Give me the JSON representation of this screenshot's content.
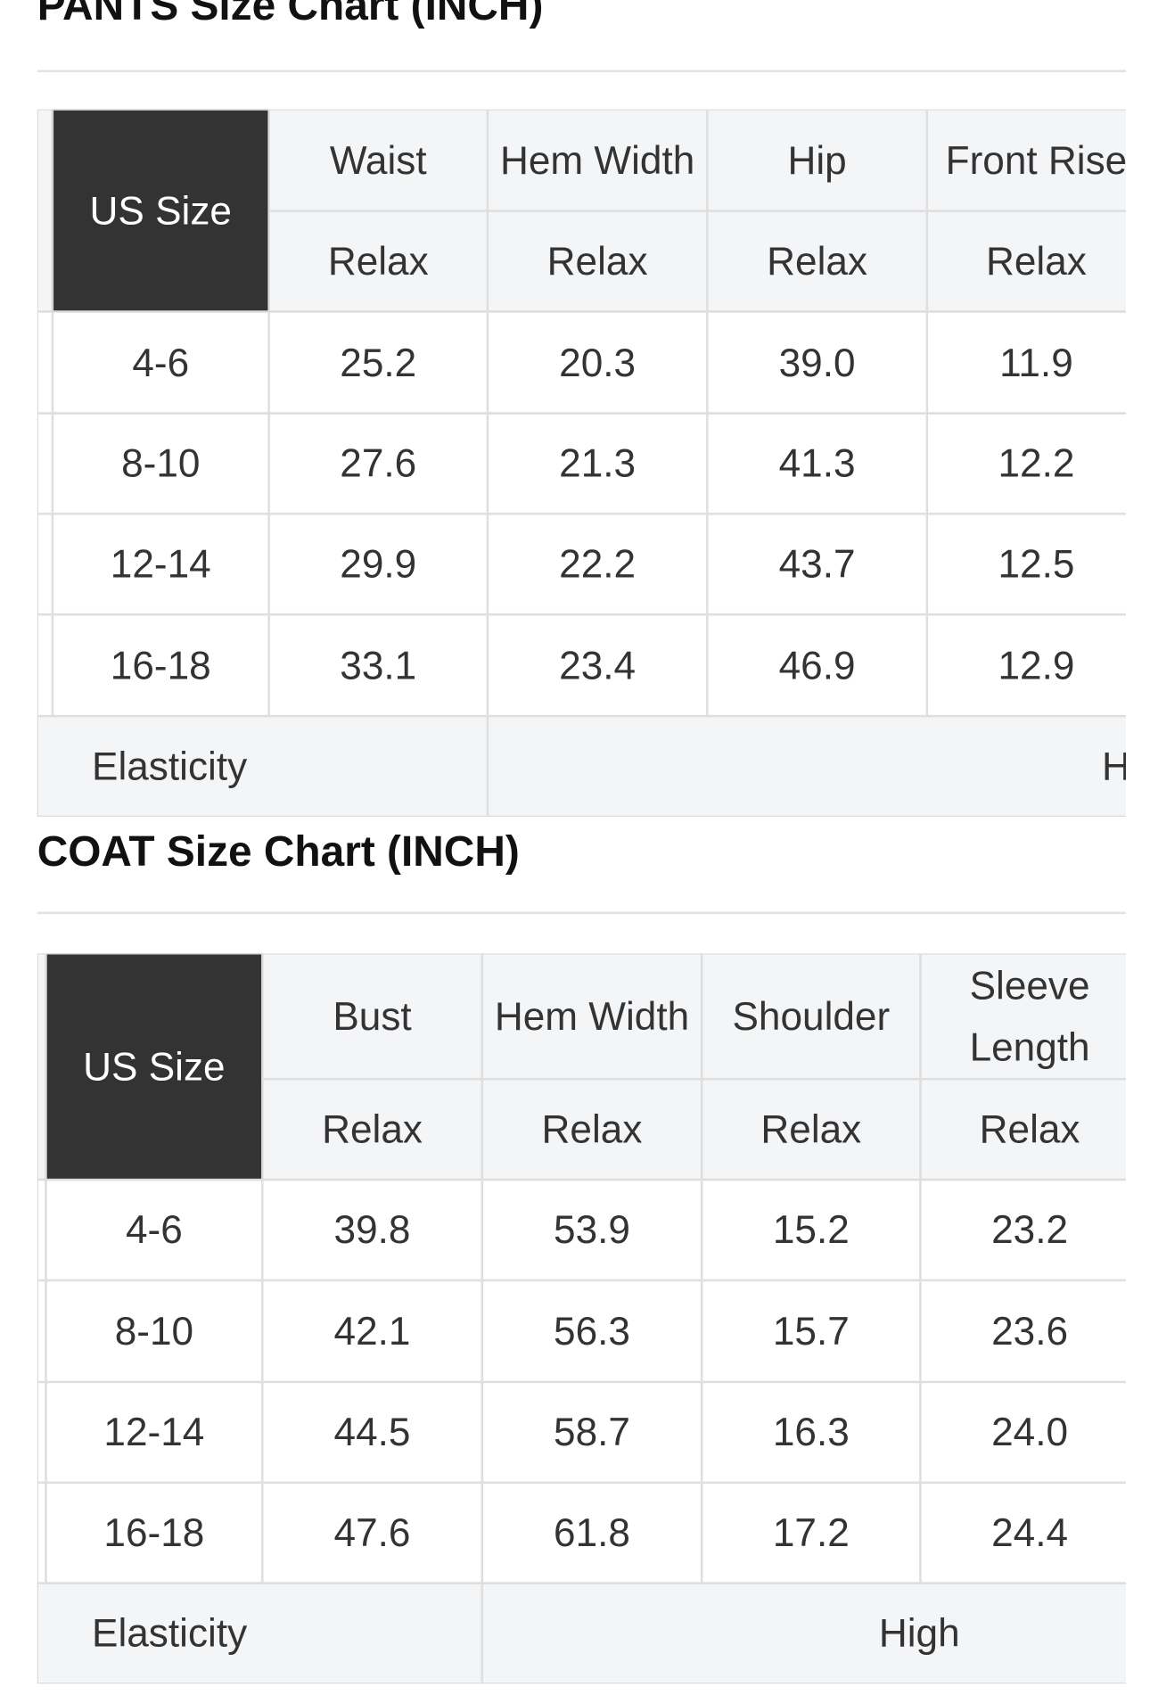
{
  "pants": {
    "title": "PANTS Size Chart (INCH)",
    "header": {
      "size_label": "US Size",
      "measurements": [
        "Waist",
        "Hem Width",
        "Hip",
        "Front Rise"
      ],
      "fit": [
        "Relax",
        "Relax",
        "Relax",
        "Relax"
      ]
    },
    "rows": [
      {
        "size": "4-6",
        "values": [
          "25.2",
          "20.3",
          "39.0",
          "11.9"
        ]
      },
      {
        "size": "8-10",
        "values": [
          "27.6",
          "21.3",
          "41.3",
          "12.2"
        ]
      },
      {
        "size": "12-14",
        "values": [
          "29.9",
          "22.2",
          "43.7",
          "12.5"
        ]
      },
      {
        "size": "16-18",
        "values": [
          "33.1",
          "23.4",
          "46.9",
          "12.9"
        ]
      }
    ],
    "elasticity": {
      "label": "Elasticity",
      "value": "High"
    }
  },
  "coat": {
    "title": "COAT Size Chart (INCH)",
    "header": {
      "size_label": "US Size",
      "measurements": [
        "Bust",
        "Hem Width",
        "Shoulder",
        "Sleeve Length"
      ],
      "fit": [
        "Relax",
        "Relax",
        "Relax",
        "Relax"
      ]
    },
    "rows": [
      {
        "size": "4-6",
        "values": [
          "39.8",
          "53.9",
          "15.2",
          "23.2"
        ]
      },
      {
        "size": "8-10",
        "values": [
          "42.1",
          "56.3",
          "15.7",
          "23.6"
        ]
      },
      {
        "size": "12-14",
        "values": [
          "44.5",
          "58.7",
          "16.3",
          "24.0"
        ]
      },
      {
        "size": "16-18",
        "values": [
          "47.6",
          "61.8",
          "17.2",
          "24.4"
        ]
      }
    ],
    "elasticity": {
      "label": "Elasticity",
      "value": "High"
    }
  }
}
